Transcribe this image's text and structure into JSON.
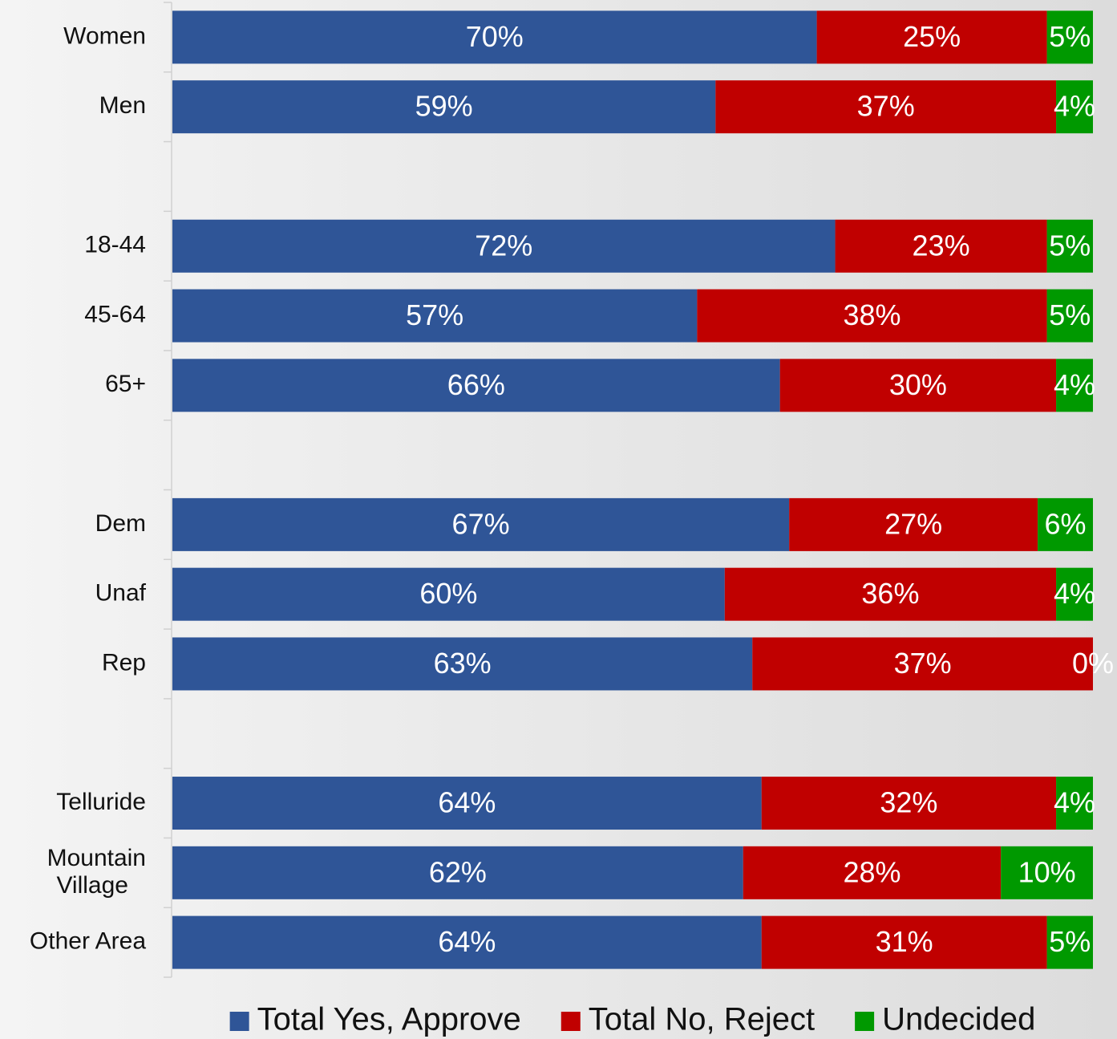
{
  "chart_data": {
    "type": "stacked-bar-horizontal",
    "categories": [
      "Women",
      "Men",
      null,
      "18-44",
      "45-64",
      "65+",
      null,
      "Dem",
      "Unaf",
      "Rep",
      null,
      "Telluride",
      "Mountain Village",
      "Other Area"
    ],
    "series": [
      {
        "name": "Total Yes, Approve",
        "color": "#2f5597",
        "values": [
          70,
          59,
          null,
          72,
          57,
          66,
          null,
          67,
          60,
          63,
          null,
          64,
          62,
          64
        ],
        "value_labels": [
          "70%",
          "59%",
          null,
          "72%",
          "57%",
          "66%",
          null,
          "67%",
          "60%",
          "63%",
          null,
          "64%",
          "62%",
          "64%"
        ]
      },
      {
        "name": "Total No, Reject",
        "color": "#c00000",
        "values": [
          25,
          37,
          null,
          23,
          38,
          30,
          null,
          27,
          36,
          37,
          null,
          32,
          28,
          31
        ],
        "value_labels": [
          "25%",
          "37%",
          null,
          "23%",
          "38%",
          "30%",
          null,
          "27%",
          "36%",
          "37%",
          null,
          "32%",
          "28%",
          "31%"
        ]
      },
      {
        "name": "Undecided",
        "color": "#009900",
        "values": [
          5,
          4,
          null,
          5,
          5,
          4,
          null,
          6,
          4,
          0,
          null,
          4,
          10,
          5
        ],
        "value_labels": [
          "5%",
          "4%",
          null,
          "5%",
          "5%",
          "4%",
          null,
          "6%",
          "4%",
          "0%",
          null,
          "4%",
          "10%",
          "5%"
        ]
      }
    ]
  }
}
